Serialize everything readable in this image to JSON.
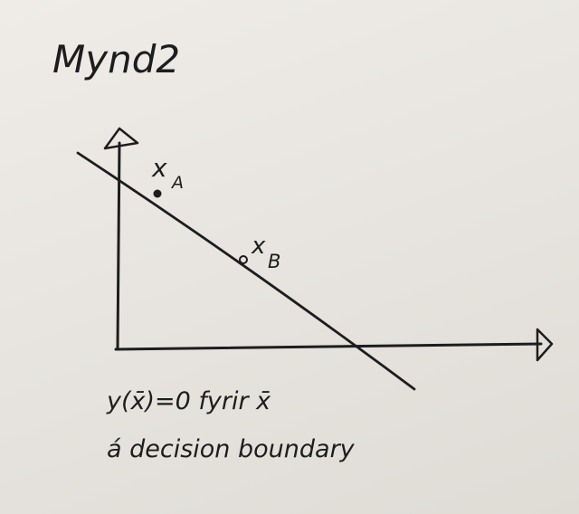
{
  "figure": {
    "title": "Mynd2",
    "point_a_label": "x",
    "point_a_sub": "A",
    "point_b_label": "x",
    "point_b_sub": "B",
    "caption_line1": "y(x̄)=0  fyrir x̄",
    "caption_line2": "á decision boundary",
    "ink_color": "#1d1d1f",
    "paper_color": "#ebe8e3"
  }
}
